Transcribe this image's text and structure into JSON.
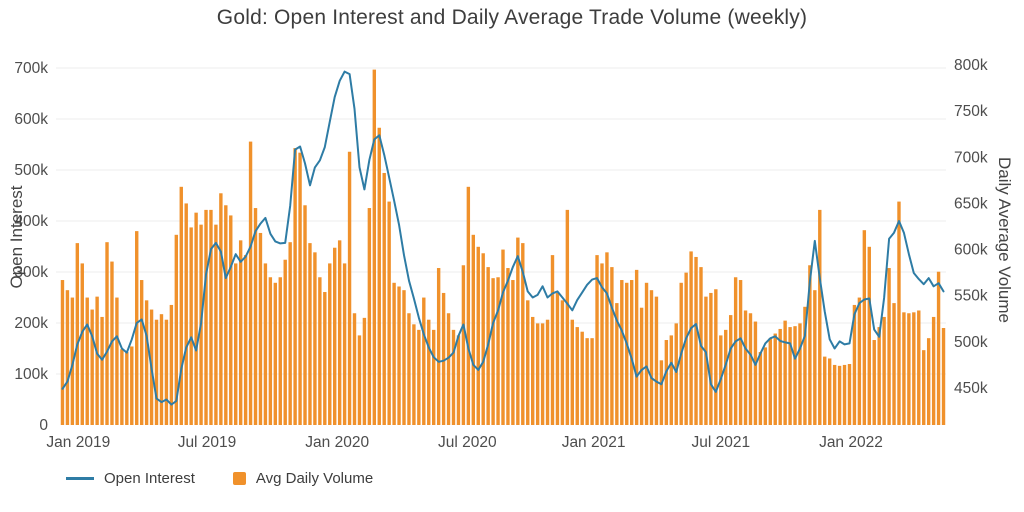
{
  "title": "Gold: Open Interest and Daily Average Trade Volume (weekly)",
  "colors": {
    "line": "#2e7ca5",
    "bar": "#f0912b",
    "grid": "#ececec",
    "tick_text": "#4d4d4d",
    "title_text": "#3d3d3d"
  },
  "legend": {
    "items": [
      {
        "label": "Open Interest",
        "swatch": "line-swatch"
      },
      {
        "label": "Avg Daily Volume",
        "swatch": "bar-swatch"
      }
    ]
  },
  "chart_data": {
    "type": "line+bar",
    "title": "Gold: Open Interest and Daily Average Trade Volume (weekly)",
    "frequency": "weekly",
    "units": "thousands of contracts (k)",
    "x_axis": {
      "tick_labels": [
        "Jan 2019",
        "Jul 2019",
        "Jan 2020",
        "Jul 2020",
        "Jan 2021",
        "Jul 2021",
        "Jan 2022"
      ],
      "tick_week_positions": [
        3.2,
        29.2,
        55.5,
        81.8,
        107.3,
        133.0,
        159.3
      ],
      "n_weeks": 179
    },
    "y_left": {
      "label": "Open Interest",
      "tick_labels": [
        "0",
        "100k",
        "200k",
        "300k",
        "400k",
        "500k",
        "600k",
        "700k"
      ],
      "tick_values": [
        0,
        100,
        200,
        300,
        400,
        500,
        600,
        700
      ],
      "range": [
        0,
        706
      ],
      "grid": true
    },
    "y_right": {
      "label": "Daily Average Volume",
      "tick_labels": [
        "450k",
        "500k",
        "550k",
        "600k",
        "650k",
        "700k",
        "750k",
        "800k"
      ],
      "tick_values": [
        450,
        500,
        550,
        600,
        650,
        700,
        750,
        800
      ],
      "range": [
        410,
        800
      ],
      "grid": false
    },
    "series": [
      {
        "name": "Open Interest",
        "type": "line",
        "axis": "left",
        "values_k": [
          71,
          85,
          118,
          158,
          183,
          197,
          174,
          140,
          128,
          144,
          164,
          174,
          150,
          142,
          168,
          200,
          207,
          175,
          110,
          52,
          45,
          50,
          40,
          47,
          110,
          152,
          172,
          146,
          200,
          295,
          345,
          357,
          340,
          288,
          310,
          335,
          320,
          330,
          350,
          380,
          395,
          406,
          375,
          360,
          356,
          357,
          430,
          540,
          546,
          513,
          470,
          505,
          519,
          545,
          595,
          643,
          675,
          693,
          688,
          620,
          505,
          462,
          520,
          560,
          568,
          530,
          485,
          440,
          392,
          333,
          283,
          248,
          210,
          178,
          152,
          133,
          124,
          126,
          132,
          142,
          175,
          197,
          150,
          118,
          108,
          124,
          158,
          200,
          225,
          260,
          283,
          310,
          331,
          300,
          262,
          250,
          255,
          272,
          250,
          258,
          262,
          250,
          238,
          225,
          245,
          260,
          275,
          285,
          288,
          270,
          258,
          230,
          205,
          185,
          160,
          130,
          95,
          108,
          115,
          92,
          85,
          80,
          105,
          122,
          104,
          140,
          170,
          190,
          198,
          155,
          143,
          80,
          65,
          90,
          118,
          150,
          164,
          170,
          150,
          138,
          118,
          140,
          160,
          170,
          174,
          165,
          162,
          160,
          130,
          150,
          175,
          282,
          361,
          288,
          223,
          168,
          150,
          164,
          158,
          160,
          217,
          239,
          246,
          248,
          187,
          173,
          249,
          365,
          377,
          400,
          377,
          335,
          298,
          286,
          276,
          288,
          272,
          278,
          262
        ]
      },
      {
        "name": "Avg Daily Volume",
        "type": "bar",
        "axis": "right",
        "values_k": [
          567,
          556,
          548,
          607,
          585,
          548,
          535,
          549,
          527,
          608,
          587,
          548,
          492,
          489,
          495,
          620,
          567,
          545,
          535,
          524,
          530,
          524,
          540,
          616,
          668,
          650,
          624,
          640,
          627,
          643,
          643,
          627,
          661,
          648,
          637,
          585,
          610,
          594,
          717,
          645,
          618,
          585,
          570,
          564,
          570,
          589,
          608,
          710,
          705,
          648,
          607,
          597,
          570,
          554,
          585,
          602,
          610,
          585,
          706,
          531,
          507,
          526,
          645,
          795,
          732,
          683,
          652,
          564,
          560,
          556,
          531,
          519,
          513,
          548,
          524,
          513,
          580,
          553,
          531,
          513,
          507,
          583,
          668,
          616,
          603,
          596,
          581,
          569,
          570,
          600,
          580,
          567,
          613,
          607,
          545,
          527,
          520,
          520,
          524,
          594,
          553,
          545,
          643,
          524,
          516,
          511,
          504,
          504,
          594,
          585,
          597,
          581,
          542,
          567,
          564,
          567,
          578,
          537,
          564,
          556,
          549,
          480,
          502,
          507,
          520,
          564,
          575,
          598,
          592,
          581,
          549,
          553,
          557,
          507,
          513,
          529,
          570,
          567,
          534,
          531,
          522,
          489,
          494,
          504,
          509,
          514,
          523,
          516,
          517,
          520,
          538,
          583,
          556,
          643,
          484,
          482,
          475,
          474,
          475,
          476,
          540,
          548,
          621,
          603,
          502,
          516,
          527,
          580,
          542,
          652,
          532,
          531,
          532,
          534,
          491,
          504,
          527,
          576,
          515
        ]
      }
    ],
    "legend_position": "bottom-left"
  }
}
